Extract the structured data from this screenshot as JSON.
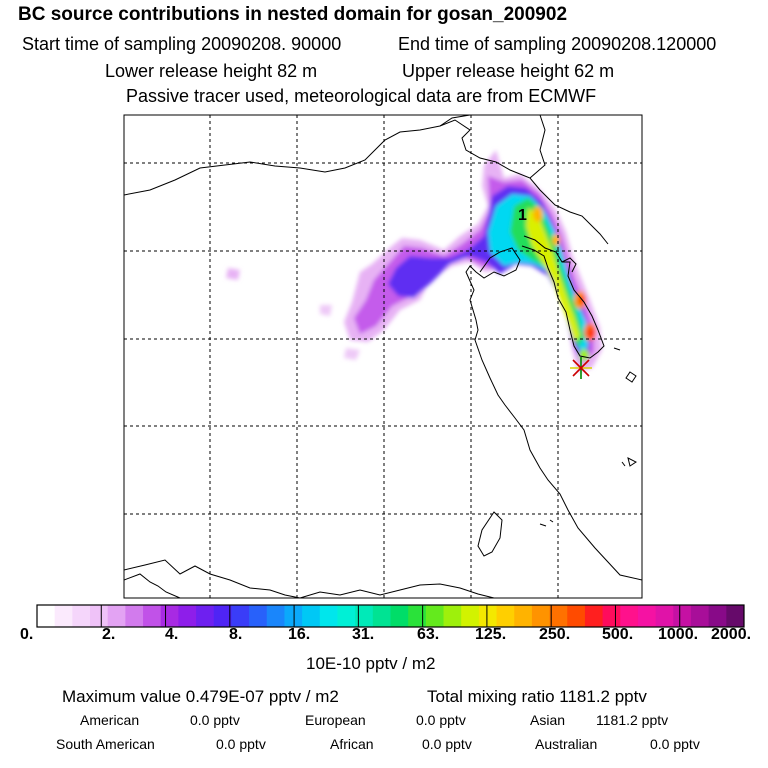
{
  "header": {
    "title": "BC  source contributions in nested domain for gosan_200902",
    "start_time": "Start time of sampling 20090208. 90000",
    "end_time": "End time of sampling 20090208.120000",
    "lower_release": "Lower release height   82 m",
    "upper_release": "Upper release height   62 m",
    "tracer_note": "Passive tracer used, meteorological data are from ECMWF"
  },
  "map": {
    "trajectory_label": "1",
    "site_marker": "receptor-star"
  },
  "colorbar": {
    "unit_label": "10E-10 pptv / m2",
    "tick_labels": [
      "0.",
      "2.",
      "4.",
      "8.",
      "16.",
      "31.",
      "63.",
      "125.",
      "250.",
      "500.",
      "1000.",
      "2000."
    ],
    "colors": [
      "#ffffff",
      "#fbeafd",
      "#f5d6fb",
      "#efc2f8",
      "#e3a3f3",
      "#d27bed",
      "#c152e8",
      "#a82ae3",
      "#8e1eea",
      "#6e20f0",
      "#4f24f5",
      "#3a3df8",
      "#2861fa",
      "#1a86fb",
      "#0ba9fb",
      "#00c8f5",
      "#00e6ec",
      "#00f0d6",
      "#00eab8",
      "#00e393",
      "#00dd68",
      "#2ae23a",
      "#64ea1d",
      "#9ef00c",
      "#d2f300",
      "#f4e800",
      "#ffcf00",
      "#ffb300",
      "#ff9300",
      "#ff7100",
      "#ff4b00",
      "#ff1f1f",
      "#ff0c5c",
      "#ff118c",
      "#f512a3",
      "#e013a8",
      "#c511a3",
      "#a80e99",
      "#880a88",
      "#660a6a"
    ]
  },
  "summary": {
    "maximum": "Maximum value  0.479E-07 pptv / m2",
    "total": "Total mixing ratio     1181.2 pptv"
  },
  "contributions": [
    {
      "label": "American",
      "value": "0.0 pptv"
    },
    {
      "label": "European",
      "value": "0.0 pptv"
    },
    {
      "label": "Asian",
      "value": "1181.2 pptv"
    },
    {
      "label": "South American",
      "value": "0.0 pptv"
    },
    {
      "label": "African",
      "value": "0.0 pptv"
    },
    {
      "label": "Australian",
      "value": "0.0 pptv"
    }
  ]
}
